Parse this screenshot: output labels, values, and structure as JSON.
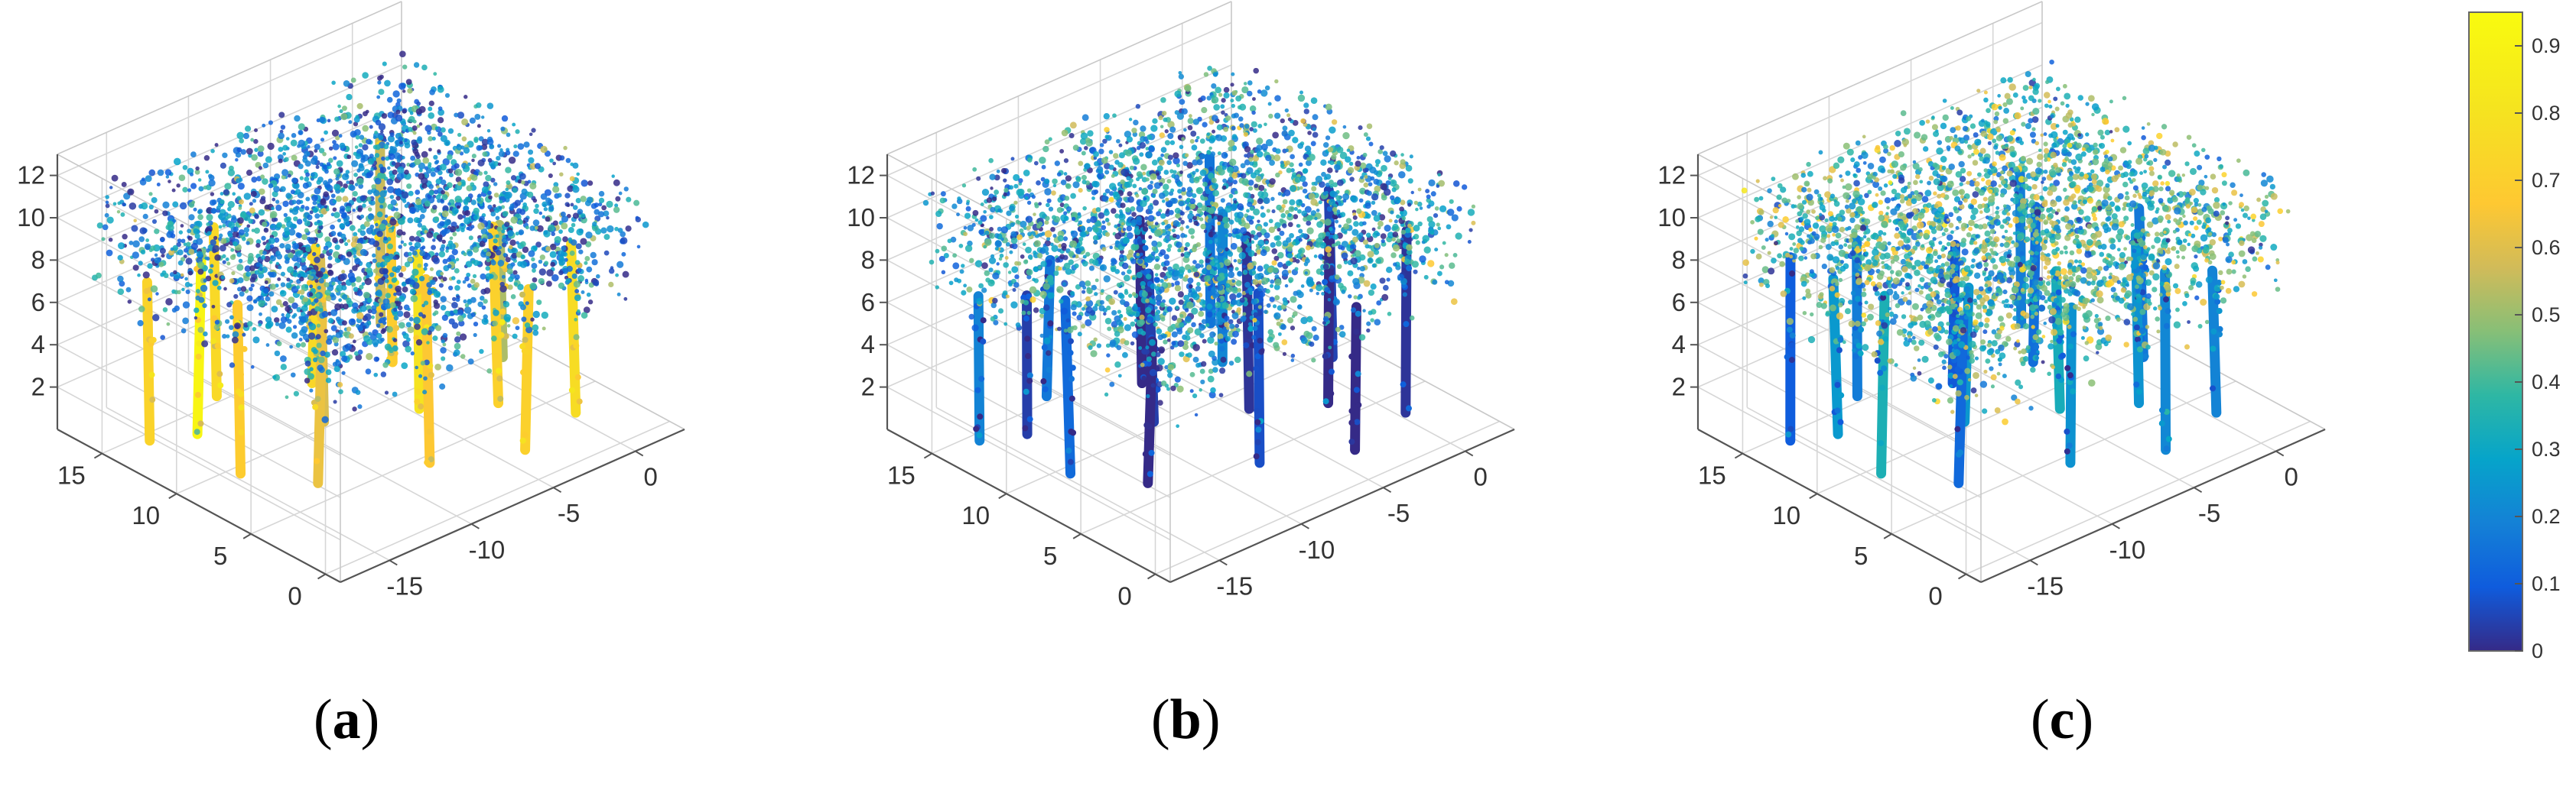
{
  "chart_data": [
    {
      "type": "scatter",
      "subtype": "3d-point-cloud",
      "panel_label": "a",
      "x_ticks": [
        "-15",
        "-10",
        "-5",
        "0"
      ],
      "y_ticks": [
        "0",
        "5",
        "10",
        "15"
      ],
      "z_ticks": [
        "2",
        "4",
        "6",
        "8",
        "10",
        "12"
      ],
      "xlim": [
        -18,
        3
      ],
      "ylim": [
        -1,
        18
      ],
      "zlim": [
        0,
        13
      ],
      "grid": true,
      "colormap": "parula",
      "color_range": [
        0,
        0.95
      ],
      "trunk_value_mean": 0.72,
      "canopy_value_mean": 0.22,
      "stems": [
        {
          "x": -16,
          "y": 14
        },
        {
          "x": -15,
          "y": 9
        },
        {
          "x": -14,
          "y": 13
        },
        {
          "x": -13,
          "y": 6
        },
        {
          "x": -11,
          "y": 15
        },
        {
          "x": -9,
          "y": 10
        },
        {
          "x": -8,
          "y": 4
        },
        {
          "x": -7,
          "y": 13
        },
        {
          "x": -5,
          "y": 8
        },
        {
          "x": -4,
          "y": 2
        },
        {
          "x": -3,
          "y": 12
        },
        {
          "x": -2,
          "y": 6
        },
        {
          "x": -1,
          "y": 15
        },
        {
          "x": 0,
          "y": 3
        },
        {
          "x": 1,
          "y": 9
        }
      ]
    },
    {
      "type": "scatter",
      "subtype": "3d-point-cloud",
      "panel_label": "b",
      "x_ticks": [
        "-15",
        "-10",
        "-5",
        "0"
      ],
      "y_ticks": [
        "0",
        "5",
        "10",
        "15"
      ],
      "z_ticks": [
        "2",
        "4",
        "6",
        "8",
        "10",
        "12"
      ],
      "xlim": [
        -18,
        3
      ],
      "ylim": [
        -1,
        18
      ],
      "zlim": [
        0,
        13
      ],
      "grid": true,
      "colormap": "parula",
      "color_range": [
        0,
        0.95
      ],
      "trunk_value_mean": 0.06,
      "canopy_value_mean": 0.28,
      "stems": [
        {
          "x": -16,
          "y": 14
        },
        {
          "x": -15,
          "y": 9
        },
        {
          "x": -14,
          "y": 13
        },
        {
          "x": -13,
          "y": 6
        },
        {
          "x": -11,
          "y": 15
        },
        {
          "x": -9,
          "y": 10
        },
        {
          "x": -8,
          "y": 4
        },
        {
          "x": -7,
          "y": 13
        },
        {
          "x": -5,
          "y": 8
        },
        {
          "x": -4,
          "y": 2
        },
        {
          "x": -3,
          "y": 12
        },
        {
          "x": -2,
          "y": 6
        },
        {
          "x": -1,
          "y": 15
        },
        {
          "x": 0,
          "y": 3
        },
        {
          "x": 1,
          "y": 9
        }
      ]
    },
    {
      "type": "scatter",
      "subtype": "3d-point-cloud",
      "panel_label": "c",
      "x_ticks": [
        "-15",
        "-10",
        "-5",
        "0"
      ],
      "y_ticks": [
        "0",
        "5",
        "10",
        "15"
      ],
      "z_ticks": [
        "2",
        "4",
        "6",
        "8",
        "10",
        "12"
      ],
      "xlim": [
        -18,
        3
      ],
      "ylim": [
        -1,
        18
      ],
      "zlim": [
        0,
        13
      ],
      "grid": true,
      "colormap": "parula",
      "color_range": [
        0,
        0.95
      ],
      "trunk_value_mean": 0.2,
      "canopy_value_mean": 0.4,
      "stems": [
        {
          "x": -16,
          "y": 14
        },
        {
          "x": -15,
          "y": 9
        },
        {
          "x": -14,
          "y": 13
        },
        {
          "x": -13,
          "y": 6
        },
        {
          "x": -11,
          "y": 15
        },
        {
          "x": -9,
          "y": 10
        },
        {
          "x": -8,
          "y": 4
        },
        {
          "x": -7,
          "y": 13
        },
        {
          "x": -5,
          "y": 8
        },
        {
          "x": -4,
          "y": 2
        },
        {
          "x": -3,
          "y": 12
        },
        {
          "x": -2,
          "y": 6
        },
        {
          "x": -1,
          "y": 15
        },
        {
          "x": 0,
          "y": 3
        },
        {
          "x": 1,
          "y": 9
        }
      ]
    }
  ],
  "colorbar": {
    "ticks": [
      "0",
      "0.1",
      "0.2",
      "0.3",
      "0.4",
      "0.5",
      "0.6",
      "0.7",
      "0.8",
      "0.9"
    ],
    "range": [
      0,
      0.95
    ],
    "colormap": "parula"
  },
  "panel_labels": [
    {
      "open": "(",
      "letter": "a",
      "close": ")"
    },
    {
      "open": "(",
      "letter": "b",
      "close": ")"
    },
    {
      "open": "(",
      "letter": "c",
      "close": ")"
    }
  ]
}
